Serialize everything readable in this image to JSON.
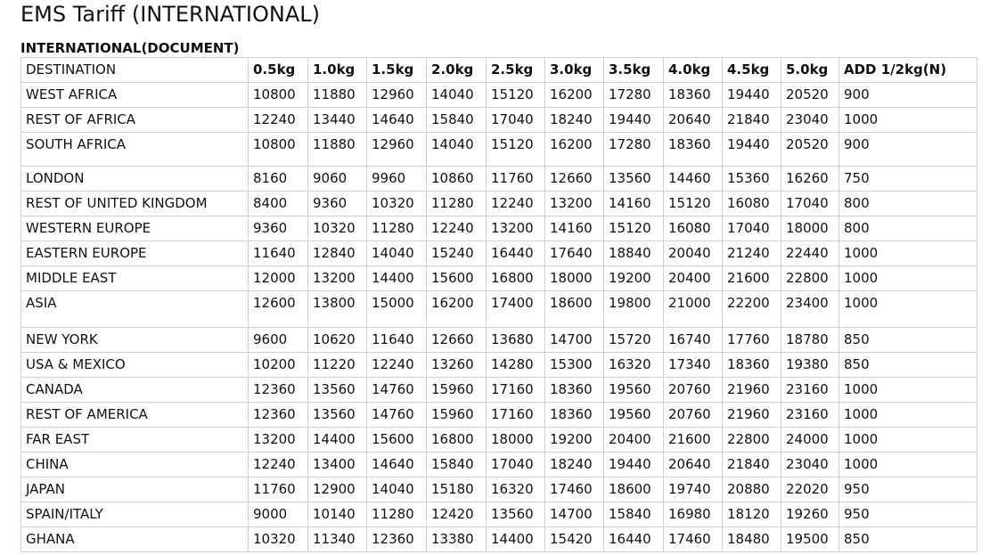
{
  "title": "EMS Tariff (INTERNATIONAL)",
  "section": "INTERNATIONAL(DOCUMENT)",
  "columns": [
    "DESTINATION",
    "0.5kg",
    "1.0kg",
    "1.5kg",
    "2.0kg",
    "2.5kg",
    "3.0kg",
    "3.5kg",
    "4.0kg",
    "4.5kg",
    "5.0kg",
    "ADD 1/2kg(N)"
  ],
  "rows": [
    [
      "WEST AFRICA",
      "10800",
      "11880",
      "12960",
      "14040",
      "15120",
      "16200",
      "17280",
      "18360",
      "19440",
      "20520",
      "900"
    ],
    [
      "REST OF AFRICA",
      "12240",
      "13440",
      "14640",
      "15840",
      "17040",
      "18240",
      "19440",
      "20640",
      "21840",
      "23040",
      "1000"
    ],
    [
      "SOUTH AFRICA",
      "10800",
      "11880",
      "12960",
      "14040",
      "15120",
      "16200",
      "17280",
      "18360",
      "19440",
      "20520",
      "900"
    ],
    [
      "LONDON",
      "8160",
      "9060",
      "9960",
      "10860",
      "11760",
      "12660",
      "13560",
      "14460",
      "15360",
      "16260",
      "750"
    ],
    [
      "REST OF UNITED KINGDOM",
      "8400",
      "9360",
      "10320",
      "11280",
      "12240",
      "13200",
      "14160",
      "15120",
      "16080",
      "17040",
      "800"
    ],
    [
      "WESTERN EUROPE",
      "9360",
      "10320",
      "11280",
      "12240",
      "13200",
      "14160",
      "15120",
      "16080",
      "17040",
      "18000",
      "800"
    ],
    [
      "EASTERN EUROPE",
      "11640",
      "12840",
      "14040",
      "15240",
      "16440",
      "17640",
      "18840",
      "20040",
      "21240",
      "22440",
      "1000"
    ],
    [
      "MIDDLE EAST",
      "12000",
      "13200",
      "14400",
      "15600",
      "16800",
      "18000",
      "19200",
      "20400",
      "21600",
      "22800",
      "1000"
    ],
    [
      "ASIA",
      "12600",
      "13800",
      "15000",
      "16200",
      "17400",
      "18600",
      "19800",
      "21000",
      "22200",
      "23400",
      "1000"
    ],
    [
      "NEW YORK",
      "9600",
      "10620",
      "11640",
      "12660",
      "13680",
      "14700",
      "15720",
      "16740",
      "17760",
      "18780",
      "850"
    ],
    [
      "USA & MEXICO",
      "10200",
      "11220",
      "12240",
      "13260",
      "14280",
      "15300",
      "16320",
      "17340",
      "18360",
      "19380",
      "850"
    ],
    [
      "CANADA",
      "12360",
      "13560",
      "14760",
      "15960",
      "17160",
      "18360",
      "19560",
      "20760",
      "21960",
      "23160",
      "1000"
    ],
    [
      "REST OF AMERICA",
      "12360",
      "13560",
      "14760",
      "15960",
      "17160",
      "18360",
      "19560",
      "20760",
      "21960",
      "23160",
      "1000"
    ],
    [
      "FAR EAST",
      "13200",
      "14400",
      "15600",
      "16800",
      "18000",
      "19200",
      "20400",
      "21600",
      "22800",
      "24000",
      "1000"
    ],
    [
      "CHINA",
      "12240",
      "13400",
      "14640",
      "15840",
      "17040",
      "18240",
      "19440",
      "20640",
      "21840",
      "23040",
      "1000"
    ],
    [
      "JAPAN",
      "11760",
      "12900",
      "14040",
      "15180",
      "16320",
      "17460",
      "18600",
      "19740",
      "20880",
      "22020",
      "950"
    ],
    [
      "SPAIN/ITALY",
      "9000",
      "10140",
      "11280",
      "12420",
      "13560",
      "14700",
      "15840",
      "16980",
      "18120",
      "19260",
      "950"
    ],
    [
      "GHANA",
      "10320",
      "11340",
      "12360",
      "13380",
      "14400",
      "15420",
      "16440",
      "17460",
      "18480",
      "19500",
      "850"
    ]
  ]
}
